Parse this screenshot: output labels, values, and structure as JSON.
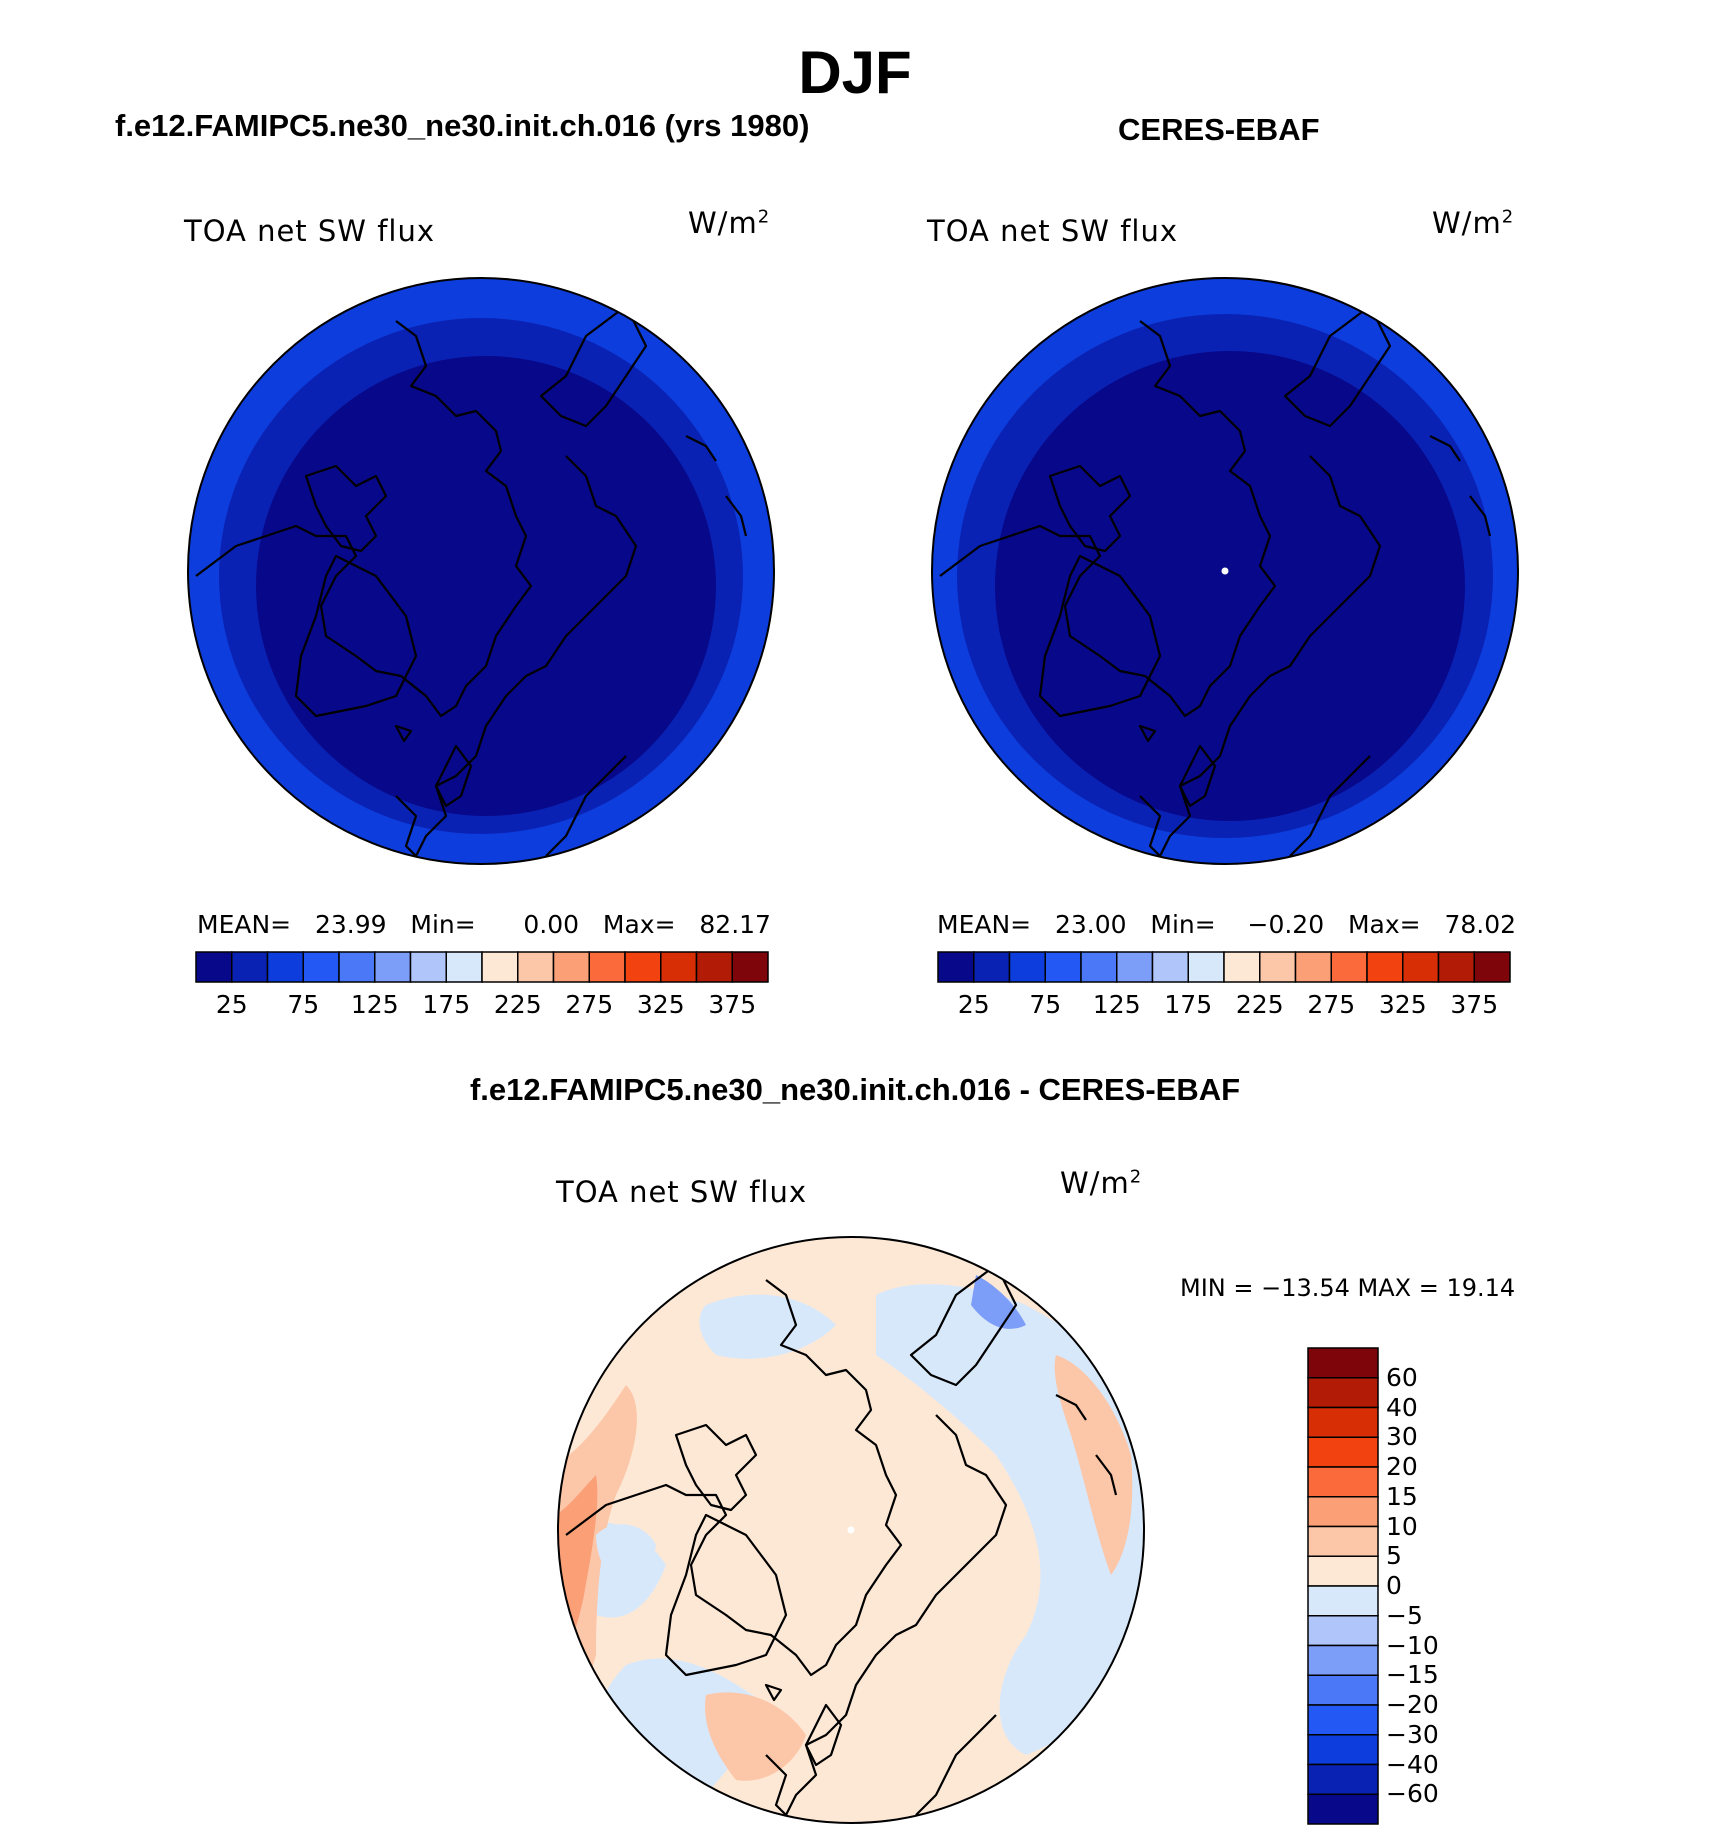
{
  "title": "DJF",
  "panels": {
    "model": {
      "header": "f.e12.FAMIPC5.ne30_ne30.init.ch.016 (yrs 1980)",
      "variable": "TOA net SW flux",
      "units": "W/m",
      "units_sup": "2",
      "stats": {
        "mean_label": "MEAN=",
        "mean": "23.99",
        "min_label": "Min=",
        "min": "0.00",
        "max_label": "Max=",
        "max": "82.17"
      }
    },
    "obs": {
      "header": "CERES-EBAF",
      "variable": "TOA net SW flux",
      "units": "W/m",
      "units_sup": "2",
      "stats": {
        "mean_label": "MEAN=",
        "mean": "23.00",
        "min_label": "Min=",
        "min": "−0.20",
        "max_label": "Max=",
        "max": "78.02"
      }
    },
    "diff": {
      "header": "f.e12.FAMIPC5.ne30_ne30.init.ch.016 - CERES-EBAF",
      "variable": "TOA net SW flux",
      "units": "W/m",
      "units_sup": "2",
      "minmax": "MIN = −13.54 MAX =   19.14"
    }
  },
  "colorbar_main": {
    "colors": [
      "#08088a",
      "#0a22b4",
      "#0d3ddc",
      "#2458f5",
      "#4a78f7",
      "#7d9ef8",
      "#b0c6fa",
      "#d8e8fb",
      "#fde8d6",
      "#fcc6a8",
      "#fb9f77",
      "#fa6a3a",
      "#f2420f",
      "#d72e06",
      "#b21b06",
      "#7e0509"
    ],
    "tick_labels": [
      "25",
      "75",
      "125",
      "175",
      "225",
      "275",
      "325",
      "375"
    ]
  },
  "colorbar_diff": {
    "colors_top_to_bottom": [
      "#7e0509",
      "#b21b06",
      "#d72e06",
      "#f2420f",
      "#fa6a3a",
      "#fb9f77",
      "#fcc6a8",
      "#fde8d6",
      "#d8e8fb",
      "#b0c6fa",
      "#7d9ef8",
      "#4a78f7",
      "#2458f5",
      "#0d3ddc",
      "#0a22b4",
      "#08088a"
    ],
    "tick_labels": [
      "60",
      "40",
      "30",
      "20",
      "15",
      "10",
      "5",
      "0",
      "−5",
      "−10",
      "−15",
      "−20",
      "−30",
      "−40",
      "−60"
    ]
  },
  "map_colors": {
    "model_outer": "#0d3ddc",
    "model_ring": "#0a22b4",
    "model_inner": "#08088a",
    "diff_base": "#fde8d6",
    "diff_neg": "#d8e8fb",
    "diff_pos": "#fcc6a8",
    "diff_strong_pos": "#fb9f77",
    "diff_strong_neg": "#7d9ef8",
    "coast": "#000000"
  }
}
